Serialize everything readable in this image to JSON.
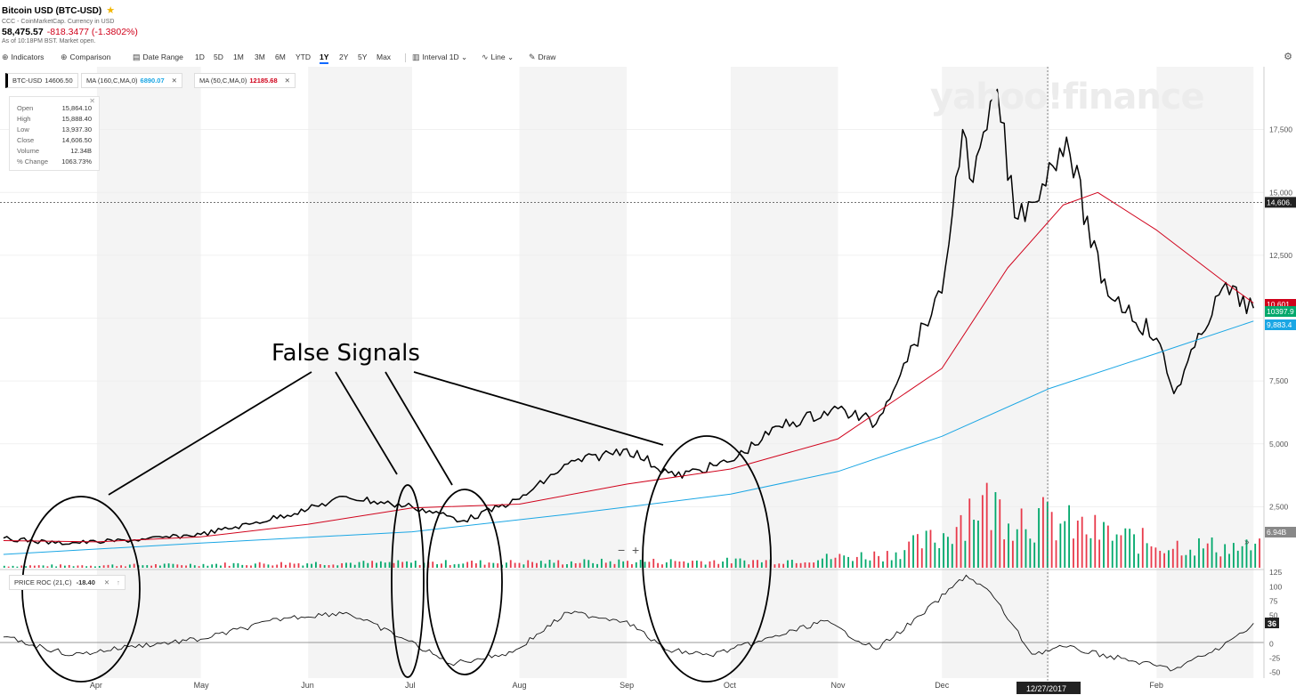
{
  "header": {
    "title": "Bitcoin USD (BTC-USD)",
    "source": "CCC - CoinMarketCap. Currency in USD",
    "price": "58,475.57",
    "change": "-818.3477 (-1.3802%)",
    "asof": "As of 10:18PM BST. Market open."
  },
  "toolbar": {
    "indicators": "Indicators",
    "comparison": "Comparison",
    "date_range": "Date Range",
    "ranges": [
      "1D",
      "5D",
      "1M",
      "3M",
      "6M",
      "YTD",
      "1Y",
      "2Y",
      "5Y",
      "Max"
    ],
    "selected_range": "1Y",
    "interval": "Interval",
    "interval_value": "1D",
    "line": "Line",
    "draw": "Draw"
  },
  "legend": {
    "symbol": "BTC-USD",
    "symbol_value": "14606.50",
    "ma160_label": "MA (160,C,MA,0)",
    "ma160_value": "6890.07",
    "ma160_color": "#1aa6e4",
    "ma50_label": "MA (50,C,MA,0)",
    "ma50_value": "12185.68",
    "ma50_color": "#d0021b"
  },
  "ohlc": {
    "open_label": "Open",
    "open": "15,864.10",
    "high_label": "High",
    "high": "15,888.40",
    "low_label": "Low",
    "low": "13,937.30",
    "close_label": "Close",
    "close": "14,606.50",
    "volume_label": "Volume",
    "volume": "12.34B",
    "pct_label": "% Change",
    "pct": "1063.73%"
  },
  "watermark": "yahoo!finance",
  "indicator": {
    "label": "PRICE ROC (21,C)",
    "value": "-18.40"
  },
  "annotation": "False Signals",
  "badges": {
    "crosshair": "14,606.",
    "ma50": "10,601",
    "last": "10397.9",
    "ma160": "9,883.4",
    "volume": "6.94B",
    "roc": "36",
    "date": "12/27/2017"
  },
  "chart_data": [
    {
      "type": "line",
      "series": [
        {
          "name": "BTC-USD",
          "color": "#000000",
          "x": [
            "2017-03-05",
            "2017-03-20",
            "2017-04-01",
            "2017-04-15",
            "2017-05-01",
            "2017-05-15",
            "2017-06-01",
            "2017-06-12",
            "2017-06-25",
            "2017-07-01",
            "2017-07-16",
            "2017-08-01",
            "2017-08-15",
            "2017-09-01",
            "2017-09-15",
            "2017-10-01",
            "2017-10-15",
            "2017-11-01",
            "2017-11-12",
            "2017-11-20",
            "2017-12-01",
            "2017-12-07",
            "2017-12-10",
            "2017-12-17",
            "2017-12-22",
            "2017-12-27",
            "2018-01-06",
            "2018-01-16",
            "2018-02-01",
            "2018-02-06",
            "2018-02-20",
            "2018-03-01"
          ],
          "values": [
            1250,
            1050,
            1100,
            1200,
            1400,
            1800,
            2400,
            2900,
            2600,
            2500,
            1950,
            2800,
            4200,
            4800,
            3700,
            4300,
            5700,
            6400,
            5800,
            8200,
            11000,
            17500,
            15400,
            19100,
            14000,
            14606,
            17200,
            11400,
            9200,
            7000,
            11200,
            10397
          ]
        },
        {
          "name": "MA (50,C,MA,0)",
          "color": "#d0021b",
          "x": [
            "2017-03-05",
            "2017-04-01",
            "2017-05-01",
            "2017-06-01",
            "2017-07-01",
            "2017-08-01",
            "2017-09-01",
            "2017-10-01",
            "2017-11-01",
            "2017-12-01",
            "2017-12-20",
            "2018-01-05",
            "2018-01-15",
            "2018-02-01",
            "2018-02-20",
            "2018-03-01"
          ],
          "values": [
            1150,
            1100,
            1300,
            1800,
            2450,
            2600,
            3400,
            4000,
            5200,
            8000,
            12000,
            14500,
            15000,
            13500,
            11500,
            10601
          ]
        },
        {
          "name": "MA (160,C,MA,0)",
          "color": "#1aa6e4",
          "x": [
            "2017-03-05",
            "2017-05-01",
            "2017-07-01",
            "2017-08-15",
            "2017-10-01",
            "2017-11-01",
            "2017-12-01",
            "2018-01-01",
            "2018-02-01",
            "2018-03-01"
          ],
          "values": [
            600,
            1050,
            1500,
            2200,
            3000,
            3900,
            5300,
            7200,
            8600,
            9883
          ]
        }
      ],
      "xlim": [
        "2017-03-04",
        "2018-03-04"
      ],
      "ylim": [
        0,
        20000
      ],
      "yticks": [
        2500,
        5000,
        7500,
        10000,
        12500,
        15000,
        17500
      ],
      "ytick_labels": [
        "2,500",
        "5,000",
        "7,500",
        "",
        "12,500",
        "15,000",
        "17,500"
      ],
      "xtick_labels": [
        "Apr",
        "May",
        "Jun",
        "Jul",
        "Aug",
        "Sep",
        "Oct",
        "Nov",
        "Dec",
        "Feb"
      ],
      "crosshair_value": 14606.5,
      "grid": true
    },
    {
      "type": "bar",
      "name": "Volume",
      "xlim": [
        "2017-03-04",
        "2018-03-04"
      ],
      "ylim": [
        0,
        30000000000
      ],
      "volume_profile": {
        "x": [
          "2017-03-04",
          "2017-04-15",
          "2017-06-01",
          "2017-08-01",
          "2017-09-01",
          "2017-10-15",
          "2017-11-15",
          "2017-12-01",
          "2017-12-10",
          "2017-12-22",
          "2018-01-15",
          "2018-02-01",
          "2018-03-01"
        ],
        "values": [
          500000000,
          700000000,
          1200000000,
          1400000000,
          1600000000,
          1800000000,
          3500000000,
          8000000000,
          17000000000,
          14000000000,
          9000000000,
          6000000000,
          5000000000
        ]
      },
      "colors": {
        "up": "#00a86b",
        "down": "#e8394a"
      }
    },
    {
      "type": "line",
      "name": "PRICE ROC (21,C)",
      "x": [
        "2017-03-05",
        "2017-03-25",
        "2017-04-10",
        "2017-05-01",
        "2017-05-25",
        "2017-06-12",
        "2017-06-30",
        "2017-07-12",
        "2017-07-30",
        "2017-08-15",
        "2017-09-01",
        "2017-09-12",
        "2017-09-25",
        "2017-10-10",
        "2017-10-28",
        "2017-11-12",
        "2017-11-25",
        "2017-12-08",
        "2017-12-15",
        "2017-12-27",
        "2018-01-05",
        "2018-01-25",
        "2018-02-06",
        "2018-02-20",
        "2018-03-01"
      ],
      "values": [
        12,
        -20,
        -5,
        8,
        45,
        55,
        5,
        -35,
        -15,
        55,
        40,
        -10,
        -20,
        5,
        40,
        -10,
        50,
        120,
        90,
        -18,
        -5,
        -30,
        -45,
        -5,
        36
      ],
      "ylim": [
        -60,
        130
      ],
      "yticks": [
        -50,
        -25,
        0,
        25,
        50,
        75,
        100,
        125
      ],
      "ytick_labels": [
        "-50",
        "-25",
        "0",
        "",
        "50",
        "75",
        "100",
        "125"
      ]
    }
  ]
}
